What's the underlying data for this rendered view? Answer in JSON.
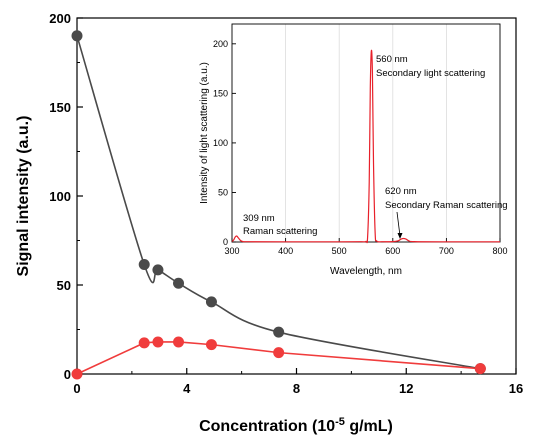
{
  "chart_data": [
    {
      "type": "line",
      "title": "",
      "xlabel": "Concentration (10",
      "xlabel_sup": "-5",
      "xlabel_tail": " g/mL)",
      "ylabel": "Signal intensity (a.u.)",
      "xlim": [
        0,
        16
      ],
      "ylim": [
        0,
        200
      ],
      "xticks": [
        "0",
        "4",
        "8",
        "12",
        "16"
      ],
      "yticks": [
        "0",
        "50",
        "100",
        "150",
        "200"
      ],
      "series": [
        {
          "color": "#4a4a4a",
          "x": [
            0,
            2.45,
            2.95,
            3.7,
            4.9,
            7.35,
            14.7
          ],
          "y": [
            190,
            61.5,
            58.5,
            51,
            40.5,
            23.5,
            3
          ]
        },
        {
          "color": "#f03c3c",
          "x": [
            0,
            2.45,
            2.95,
            3.7,
            4.9,
            7.35,
            14.7
          ],
          "y": [
            0,
            17.5,
            18,
            18,
            16.5,
            12,
            3
          ]
        }
      ]
    },
    {
      "type": "line",
      "title": "",
      "xlabel": "Wavelength, nm",
      "ylabel": "Intensity of light scattering (a.u.)",
      "xlim": [
        300,
        800
      ],
      "ylim": [
        0,
        220
      ],
      "xticks": [
        "300",
        "400",
        "500",
        "600",
        "700",
        "800"
      ],
      "yticks": [
        "0",
        "50",
        "100",
        "150",
        "200"
      ],
      "grid": true,
      "series": [
        {
          "color": "#e8202a",
          "x": [
            300,
            303,
            306,
            309,
            312,
            316,
            320,
            330,
            400,
            500,
            540,
            550,
            553,
            556,
            558,
            560,
            562,
            564,
            567,
            570,
            580,
            600,
            610,
            615,
            620,
            625,
            630,
            640,
            700,
            800
          ],
          "y": [
            0.5,
            2,
            5,
            6,
            4,
            1.5,
            0.5,
            0.3,
            0.2,
            0.2,
            0.3,
            0.6,
            5,
            60,
            155,
            193,
            170,
            80,
            10,
            1,
            0.3,
            0.4,
            1.2,
            2.8,
            3.5,
            2.8,
            1.2,
            0.4,
            0.2,
            0.2
          ]
        }
      ],
      "annotations": [
        {
          "line1": "560 nm",
          "line2": "Secondary light scattering"
        },
        {
          "line1": "309 nm",
          "line2": "Raman scattering"
        },
        {
          "line1": "620 nm",
          "line2": "Secondary Raman scattering"
        }
      ]
    }
  ]
}
